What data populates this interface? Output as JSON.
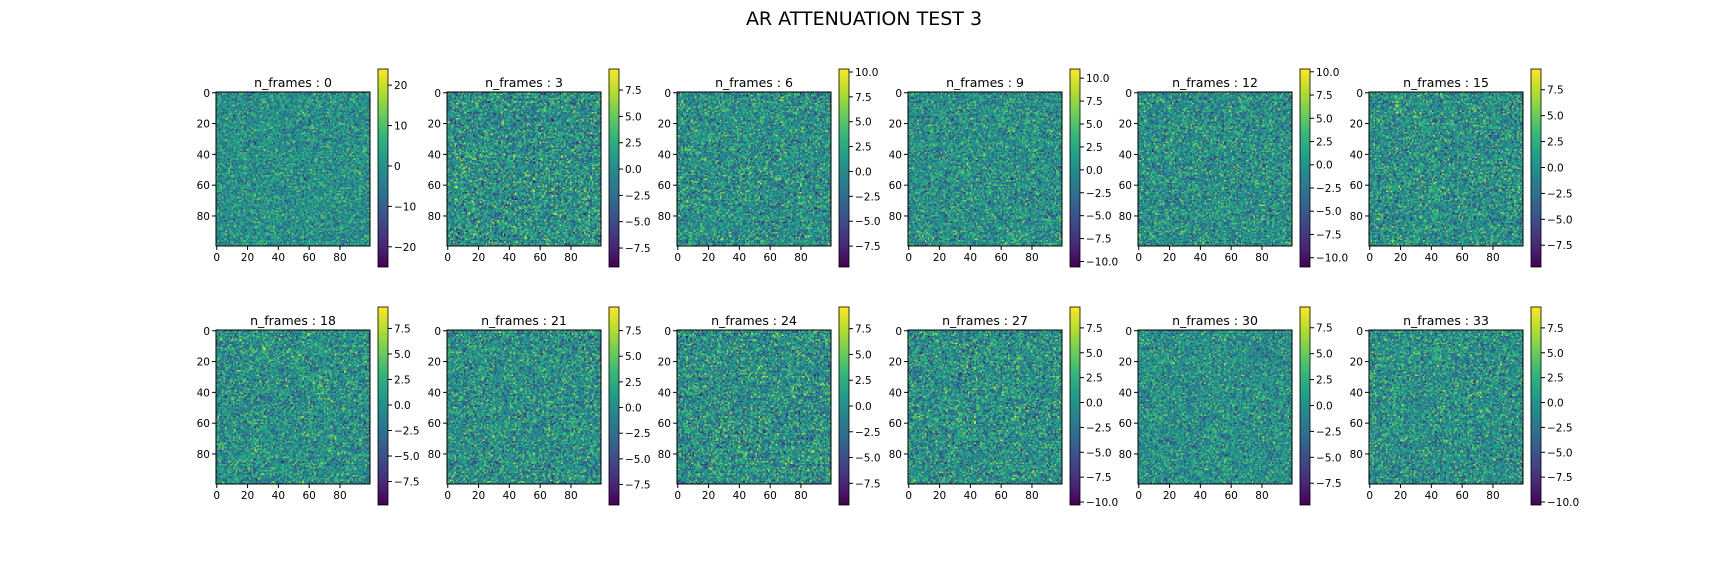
{
  "figure": {
    "title": "AR ATTENUATION TEST 3"
  },
  "colormap": {
    "name": "viridis",
    "stops": [
      "#440154",
      "#482878",
      "#3e4989",
      "#31688e",
      "#26828e",
      "#1f9e89",
      "#35b779",
      "#6ece58",
      "#b5de2b",
      "#fde725"
    ]
  },
  "chart_data": [
    {
      "type": "heatmap",
      "title": "n_frames : 0",
      "grid_size": [
        100,
        100
      ],
      "xticks": [
        0,
        20,
        40,
        60,
        80
      ],
      "yticks": [
        0,
        20,
        40,
        60,
        80
      ],
      "clim": [
        -25,
        24
      ],
      "cbar_ticks": [
        -20,
        -10,
        0,
        10,
        20
      ],
      "cbar_labels": [
        "−20",
        "−10",
        "0",
        "10",
        "20"
      ],
      "spread": 0.28
    },
    {
      "type": "heatmap",
      "title": "n_frames : 3",
      "grid_size": [
        100,
        100
      ],
      "xticks": [
        0,
        20,
        40,
        60,
        80
      ],
      "yticks": [
        0,
        20,
        40,
        60,
        80
      ],
      "clim": [
        -9.3,
        9.5
      ],
      "cbar_ticks": [
        -7.5,
        -5.0,
        -2.5,
        0.0,
        2.5,
        5.0,
        7.5
      ],
      "cbar_labels": [
        "−7.5",
        "−5.0",
        "−2.5",
        "0.0",
        "2.5",
        "5.0",
        "7.5"
      ],
      "spread": 0.36
    },
    {
      "type": "heatmap",
      "title": "n_frames : 6",
      "grid_size": [
        100,
        100
      ],
      "xticks": [
        0,
        20,
        40,
        60,
        80
      ],
      "yticks": [
        0,
        20,
        40,
        60,
        80
      ],
      "clim": [
        -9.6,
        10.3
      ],
      "cbar_ticks": [
        -7.5,
        -5.0,
        -2.5,
        0.0,
        2.5,
        5.0,
        7.5,
        10.0
      ],
      "cbar_labels": [
        "−7.5",
        "−5.0",
        "−2.5",
        "0.0",
        "2.5",
        "5.0",
        "7.5",
        "10.0"
      ],
      "spread": 0.33
    },
    {
      "type": "heatmap",
      "title": "n_frames : 9",
      "grid_size": [
        100,
        100
      ],
      "xticks": [
        0,
        20,
        40,
        60,
        80
      ],
      "yticks": [
        0,
        20,
        40,
        60,
        80
      ],
      "clim": [
        -10.6,
        11.0
      ],
      "cbar_ticks": [
        -10.0,
        -7.5,
        -5.0,
        -2.5,
        0.0,
        2.5,
        5.0,
        7.5,
        10.0
      ],
      "cbar_labels": [
        "−10.0",
        "−7.5",
        "−5.0",
        "−2.5",
        "0.0",
        "2.5",
        "5.0",
        "7.5",
        "10.0"
      ],
      "spread": 0.31
    },
    {
      "type": "heatmap",
      "title": "n_frames : 12",
      "grid_size": [
        100,
        100
      ],
      "xticks": [
        0,
        20,
        40,
        60,
        80
      ],
      "yticks": [
        0,
        20,
        40,
        60,
        80
      ],
      "clim": [
        -11.0,
        10.3
      ],
      "cbar_ticks": [
        -10.0,
        -7.5,
        -5.0,
        -2.5,
        0.0,
        2.5,
        5.0,
        7.5,
        10.0
      ],
      "cbar_labels": [
        "−10.0",
        "−7.5",
        "−5.0",
        "−2.5",
        "0.0",
        "2.5",
        "5.0",
        "7.5",
        "10.0"
      ],
      "spread": 0.32
    },
    {
      "type": "heatmap",
      "title": "n_frames : 15",
      "grid_size": [
        100,
        100
      ],
      "xticks": [
        0,
        20,
        40,
        60,
        80
      ],
      "yticks": [
        0,
        20,
        40,
        60,
        80
      ],
      "clim": [
        -9.6,
        9.5
      ],
      "cbar_ticks": [
        -7.5,
        -5.0,
        -2.5,
        0.0,
        2.5,
        5.0,
        7.5
      ],
      "cbar_labels": [
        "−7.5",
        "−5.0",
        "−2.5",
        "0.0",
        "2.5",
        "5.0",
        "7.5"
      ],
      "spread": 0.33
    },
    {
      "type": "heatmap",
      "title": "n_frames : 18",
      "grid_size": [
        100,
        100
      ],
      "xticks": [
        0,
        20,
        40,
        60,
        80
      ],
      "yticks": [
        0,
        20,
        40,
        60,
        80
      ],
      "clim": [
        -9.8,
        9.6
      ],
      "cbar_ticks": [
        -7.5,
        -5.0,
        -2.5,
        0.0,
        2.5,
        5.0,
        7.5
      ],
      "cbar_labels": [
        "−7.5",
        "−5.0",
        "−2.5",
        "0.0",
        "2.5",
        "5.0",
        "7.5"
      ],
      "spread": 0.32
    },
    {
      "type": "heatmap",
      "title": "n_frames : 21",
      "grid_size": [
        100,
        100
      ],
      "xticks": [
        0,
        20,
        40,
        60,
        80
      ],
      "yticks": [
        0,
        20,
        40,
        60,
        80
      ],
      "clim": [
        -9.5,
        9.8
      ],
      "cbar_ticks": [
        -7.5,
        -5.0,
        -2.5,
        0.0,
        2.5,
        5.0,
        7.5
      ],
      "cbar_labels": [
        "−7.5",
        "−5.0",
        "−2.5",
        "0.0",
        "2.5",
        "5.0",
        "7.5"
      ],
      "spread": 0.33
    },
    {
      "type": "heatmap",
      "title": "n_frames : 24",
      "grid_size": [
        100,
        100
      ],
      "xticks": [
        0,
        20,
        40,
        60,
        80
      ],
      "yticks": [
        0,
        20,
        40,
        60,
        80
      ],
      "clim": [
        -9.6,
        9.6
      ],
      "cbar_ticks": [
        -7.5,
        -5.0,
        -2.5,
        0.0,
        2.5,
        5.0,
        7.5
      ],
      "cbar_labels": [
        "−7.5",
        "−5.0",
        "−2.5",
        "0.0",
        "2.5",
        "5.0",
        "7.5"
      ],
      "spread": 0.36
    },
    {
      "type": "heatmap",
      "title": "n_frames : 27",
      "grid_size": [
        100,
        100
      ],
      "xticks": [
        0,
        20,
        40,
        60,
        80
      ],
      "yticks": [
        0,
        20,
        40,
        60,
        80
      ],
      "clim": [
        -10.3,
        9.6
      ],
      "cbar_ticks": [
        -10.0,
        -7.5,
        -5.0,
        -2.5,
        0.0,
        2.5,
        5.0,
        7.5
      ],
      "cbar_labels": [
        "−10.0",
        "−7.5",
        "−5.0",
        "−2.5",
        "0.0",
        "2.5",
        "5.0",
        "7.5"
      ],
      "spread": 0.34
    },
    {
      "type": "heatmap",
      "title": "n_frames : 30",
      "grid_size": [
        100,
        100
      ],
      "xticks": [
        0,
        20,
        40,
        60,
        80
      ],
      "yticks": [
        0,
        20,
        40,
        60,
        80
      ],
      "clim": [
        -9.6,
        9.5
      ],
      "cbar_ticks": [
        -7.5,
        -5.0,
        -2.5,
        0.0,
        2.5,
        5.0,
        7.5
      ],
      "cbar_labels": [
        "−7.5",
        "−5.0",
        "−2.5",
        "0.0",
        "2.5",
        "5.0",
        "7.5"
      ],
      "spread": 0.3
    },
    {
      "type": "heatmap",
      "title": "n_frames : 33",
      "grid_size": [
        100,
        100
      ],
      "xticks": [
        0,
        20,
        40,
        60,
        80
      ],
      "yticks": [
        0,
        20,
        40,
        60,
        80
      ],
      "clim": [
        -10.3,
        9.6
      ],
      "cbar_ticks": [
        -10.0,
        -7.5,
        -5.0,
        -2.5,
        0.0,
        2.5,
        5.0,
        7.5
      ],
      "cbar_labels": [
        "−10.0",
        "−7.5",
        "−5.0",
        "−2.5",
        "0.0",
        "2.5",
        "5.0",
        "7.5"
      ],
      "spread": 0.33
    }
  ]
}
